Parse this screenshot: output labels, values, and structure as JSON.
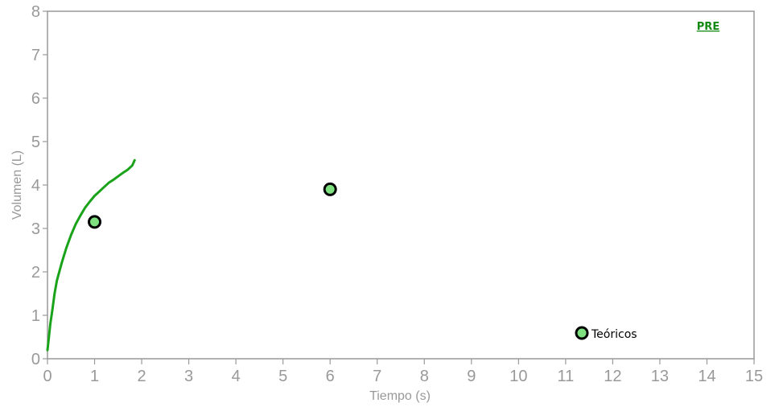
{
  "chart_data": {
    "type": "scatter",
    "title": "",
    "xlabel": "Tiempo (s)",
    "ylabel": "Volumen (L)",
    "xlim": [
      0,
      15
    ],
    "ylim": [
      0,
      8
    ],
    "x_ticks": [
      "0",
      "1",
      "2",
      "3",
      "4",
      "5",
      "6",
      "7",
      "8",
      "9",
      "10",
      "11",
      "12",
      "13",
      "14",
      "15"
    ],
    "y_ticks": [
      "0",
      "1",
      "2",
      "3",
      "4",
      "5",
      "6",
      "7",
      "8"
    ],
    "grid": false,
    "series": [
      {
        "kind": "line",
        "color": "#1aa31a",
        "points": [
          [
            0.0,
            0.2
          ],
          [
            0.03,
            0.5
          ],
          [
            0.06,
            0.8
          ],
          [
            0.1,
            1.1
          ],
          [
            0.15,
            1.5
          ],
          [
            0.2,
            1.8
          ],
          [
            0.3,
            2.2
          ],
          [
            0.4,
            2.55
          ],
          [
            0.5,
            2.85
          ],
          [
            0.6,
            3.1
          ],
          [
            0.7,
            3.3
          ],
          [
            0.8,
            3.48
          ],
          [
            0.9,
            3.62
          ],
          [
            1.0,
            3.75
          ],
          [
            1.1,
            3.85
          ],
          [
            1.2,
            3.95
          ],
          [
            1.3,
            4.05
          ],
          [
            1.4,
            4.12
          ],
          [
            1.5,
            4.2
          ],
          [
            1.6,
            4.28
          ],
          [
            1.7,
            4.35
          ],
          [
            1.8,
            4.45
          ],
          [
            1.85,
            4.57
          ]
        ]
      },
      {
        "name": "Teóricos",
        "kind": "points",
        "color": "#7ee07e",
        "edge_color": "#000000",
        "points": [
          [
            1.0,
            3.15
          ],
          [
            6.0,
            3.9
          ]
        ]
      }
    ],
    "legend": {
      "label": "Teóricos",
      "position": "bottom-right"
    },
    "link_label": "PRE"
  }
}
